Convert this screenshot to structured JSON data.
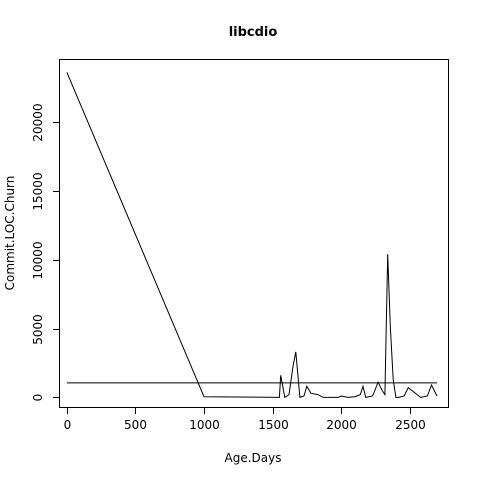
{
  "chart_data": {
    "type": "line",
    "title": "libcdio",
    "xlabel": "Age.Days",
    "ylabel": "Commit.LOC.Churn",
    "xlim": [
      -50,
      2780
    ],
    "ylim": [
      -700,
      24500
    ],
    "xticks": [
      0,
      500,
      1000,
      1500,
      2000,
      2500
    ],
    "yticks": [
      0,
      5000,
      10000,
      15000,
      20000
    ],
    "grid": false,
    "series": [
      {
        "x": [
          0,
          1000,
          1550,
          1560,
          1590,
          1620,
          1650,
          1670,
          1700,
          1730,
          1750,
          1780,
          1830,
          1870,
          1920,
          1980,
          2000,
          2050,
          2100,
          2140,
          2160,
          2180,
          2230,
          2270,
          2300,
          2320,
          2340,
          2360,
          2380,
          2400,
          2420,
          2460,
          2490,
          2530,
          2580,
          2630,
          2660,
          2700
        ],
        "values": [
          23600,
          50,
          0,
          1600,
          0,
          200,
          2300,
          3300,
          0,
          100,
          800,
          300,
          200,
          0,
          0,
          0,
          100,
          0,
          50,
          200,
          800,
          0,
          100,
          1100,
          500,
          200,
          10400,
          5000,
          1300,
          0,
          0,
          100,
          700,
          400,
          0,
          100,
          900,
          100
        ]
      },
      {
        "x": [
          0,
          2700
        ],
        "values": [
          1050,
          1050
        ]
      }
    ]
  }
}
